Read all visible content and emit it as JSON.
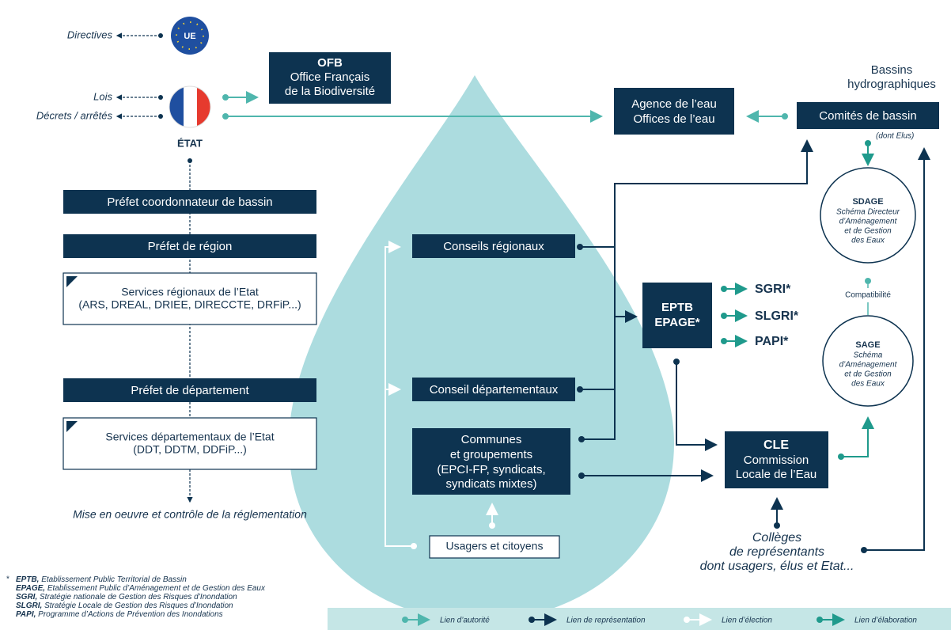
{
  "eu": {
    "label": "UE",
    "directives": "Directives"
  },
  "state": {
    "label": "ÉTAT",
    "laws": "Lois",
    "decrees": "Décrets / arrêtés"
  },
  "ofb": {
    "acronym": "OFB",
    "lines": [
      "Office Français",
      "de la Biodiversité"
    ]
  },
  "basins": {
    "title": [
      "Bassins",
      "hydrographiques"
    ],
    "agency": [
      "Agence de l’eau",
      "Offices de l’eau"
    ],
    "committees": "Comités de bassin",
    "committees_note": "(dont Elus)"
  },
  "prefects": {
    "basin": "Préfet coordonnateur de bassin",
    "region": "Préfet de région",
    "regional_services": [
      "Services régionaux de l’Etat",
      "(ARS, DREAL, DRIEE, DIRECCTE, DRFiP...)"
    ],
    "department": "Préfet de département",
    "department_services": [
      "Services départementaux de l’Etat",
      "(DDT, DDTM, DDFiP...)"
    ],
    "implementation": "Mise en oeuvre et contrôle de la réglementation"
  },
  "local": {
    "regional_councils": "Conseils régionaux",
    "department_councils": "Conseil départementaux",
    "communes": [
      "Communes",
      "et groupements",
      "(EPCI-FP, syndicats,",
      "syndicats mixtes)"
    ],
    "users": "Usagers et citoyens"
  },
  "eptb": [
    "EPTB",
    "EPAGE*"
  ],
  "plans": [
    "SGRI*",
    "SLGRI*",
    "PAPI*"
  ],
  "sdage": {
    "acronym": "SDAGE",
    "lines": [
      "Schéma Directeur",
      "d’Aménagement",
      "et de Gestion",
      "des Eaux"
    ]
  },
  "compatibility": "Compatibilité",
  "sage": {
    "acronym": "SAGE",
    "lines": [
      "Schéma",
      "d’Aménagement",
      "et de Gestion",
      "des Eaux"
    ]
  },
  "cle": {
    "acronym": "CLE",
    "lines": [
      "Commission",
      "Locale de l’Eau"
    ]
  },
  "colleges": [
    "Collèges",
    "de représentants",
    "dont usagers, élus et Etat..."
  ],
  "footnotes": {
    "marker": "*",
    "items": [
      {
        "term": "EPTB,",
        "text": "Etablissement Public Territorial de Bassin"
      },
      {
        "term": "EPAGE,",
        "text": "Etablissement Public d’Aménagement et de Gestion des Eaux"
      },
      {
        "term": "SGRI,",
        "text": "Stratégie nationale de Gestion des Risques d’Inondation"
      },
      {
        "term": "SLGRI,",
        "text": "Stratégie Locale de Gestion des Risques d’Inondation"
      },
      {
        "term": "PAPI,",
        "text": "Programme d’Actions de Prévention des Inondations"
      }
    ]
  },
  "legend": [
    "Lien d’autorité",
    "Lien de représentation",
    "Lien d’élection",
    "Lien d’élaboration"
  ]
}
